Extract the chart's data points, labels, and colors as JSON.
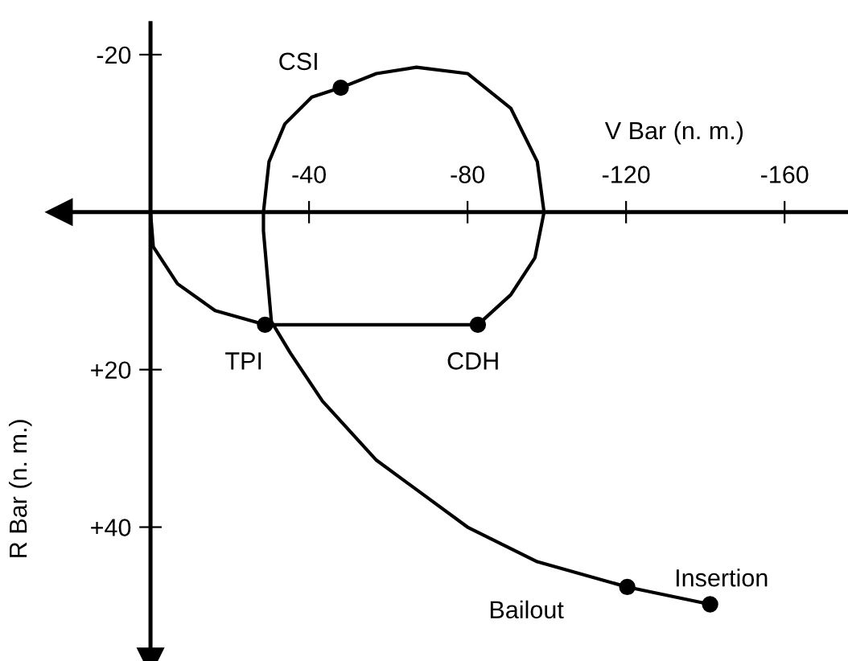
{
  "chart_data": {
    "type": "line",
    "xlabel": "V Bar (n. m.)",
    "ylabel": "R Bar (n. m.)",
    "xlim": [
      23,
      -176
    ],
    "ylim": [
      57,
      -24
    ],
    "xticks": [
      -40,
      -80,
      -120,
      -160
    ],
    "yticks": [
      -20,
      {
        "value": 20,
        "label": "+20"
      },
      {
        "value": 40,
        "label": "+40"
      }
    ],
    "grid": false,
    "legend": false,
    "series": [
      {
        "color": "#000000",
        "marker": "none",
        "line_style": "solid",
        "x": [
          -141.2,
          -120.3,
          -97.6,
          -80.0,
          -57.0,
          -43.4,
          -35.3,
          -30.5,
          -28.5,
          -28.5,
          -29.9,
          -33.9,
          -40.7,
          -48.0,
          -57.0,
          -67.1,
          -80.0,
          -90.9,
          -97.6,
          -99.3,
          -97.0,
          -90.9,
          -82.6,
          -28.9,
          -16.3,
          -6.8,
          -0.7,
          0
        ],
        "values": [
          49.8,
          47.6,
          44.4,
          40.0,
          31.5,
          24.0,
          17.9,
          13.9,
          2.4,
          0,
          -6.4,
          -11.2,
          -14.6,
          -15.8,
          -17.6,
          -18.4,
          -17.6,
          -13.2,
          -6.4,
          0,
          5.8,
          10.5,
          14.3,
          14.3,
          12.5,
          9.1,
          4.4,
          0
        ]
      },
      {
        "type": "scatter",
        "color": "#000000",
        "marker": "circle",
        "x": [
          -48.0,
          -28.9,
          -82.6,
          -120.3,
          -141.2
        ],
        "values": [
          -15.8,
          14.3,
          14.3,
          47.6,
          49.8
        ]
      }
    ],
    "annotations": [
      {
        "text": "CSI",
        "x": -48.0,
        "y": -15.8
      },
      {
        "text": "TPI",
        "x": -28.9,
        "y": 14.3
      },
      {
        "text": "CDH",
        "x": -82.6,
        "y": 14.3
      },
      {
        "text": "Bailout",
        "x": -120.3,
        "y": 47.6
      },
      {
        "text": "Insertion",
        "x": -141.2,
        "y": 49.8
      }
    ]
  }
}
